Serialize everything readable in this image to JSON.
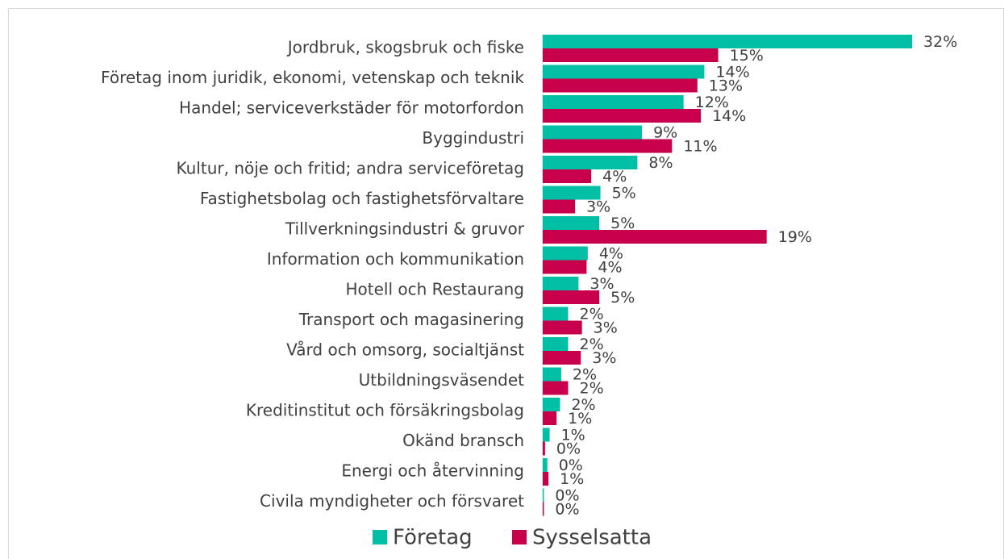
{
  "chart_data": {
    "type": "hbar",
    "categories": [
      "Jordbruk, skogsbruk och fiske",
      "Företag inom juridik, ekonomi, vetenskap och teknik",
      "Handel; serviceverkstäder för motorfordon",
      "Byggindustri",
      "Kultur, nöje och fritid; andra serviceföretag",
      "Fastighetsbolag och fastighetsförvaltare",
      "Tillverkningsindustri & gruvor",
      "Information och kommunikation",
      "Hotell och Restaurang",
      "Transport och magasinering",
      "Vård och omsorg, socialtjänst",
      "Utbildningsväsendet",
      "Kreditinstitut och försäkringsbolag",
      "Okänd bransch",
      "Energi och återvinning",
      "Civila myndigheter och försvaret"
    ],
    "series": [
      {
        "name": "Företag",
        "color": "#00bfa5",
        "values": [
          32,
          14.0,
          12.2,
          8.6,
          8.2,
          5.0,
          4.9,
          3.9,
          3.1,
          2.2,
          2.2,
          1.6,
          1.5,
          0.6,
          0.4,
          0.1
        ],
        "value_labels": [
          "32%",
          "14%",
          "12%",
          "9%",
          "8%",
          "5%",
          "5%",
          "4%",
          "3%",
          "2%",
          "2%",
          "2%",
          "2%",
          "1%",
          "0%",
          "0%"
        ]
      },
      {
        "name": "Sysselsatta",
        "color": "#c8004c",
        "values": [
          15.2,
          13.4,
          13.7,
          11.2,
          4.2,
          2.8,
          19.4,
          3.8,
          4.9,
          3.4,
          3.3,
          2.2,
          1.2,
          0.2,
          0.5,
          0.1
        ],
        "value_labels": [
          "15%",
          "13%",
          "14%",
          "11%",
          "4%",
          "3%",
          "19%",
          "4%",
          "5%",
          "3%",
          "3%",
          "2%",
          "1%",
          "0%",
          "1%",
          "0%"
        ]
      }
    ],
    "xlim": [
      0,
      35
    ],
    "legend": "bottom"
  }
}
